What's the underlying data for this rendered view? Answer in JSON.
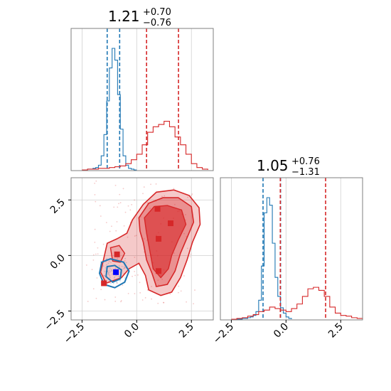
{
  "colors": {
    "blue": "#1f77b4",
    "red": "#d62728",
    "grid": "#d0d0d0",
    "axes": "#7f7f7f"
  },
  "titles": {
    "p1": {
      "value": "1.21",
      "plus": "+0.70",
      "minus": "−0.76"
    },
    "p2": {
      "value": "1.05",
      "plus": "+0.76",
      "minus": "−1.31"
    }
  },
  "chart_data": [
    {
      "type": "histogram",
      "panel": "top-left marginal (parameter 1)",
      "xlim": [
        -3.0,
        3.5
      ],
      "series": [
        {
          "color": "#1f77b4",
          "quantiles": [
            -1.35,
            -1.06,
            -0.78
          ],
          "bins": [
            -2.5,
            -2.375,
            -2.25,
            -2.125,
            -2.0,
            -1.875,
            -1.75,
            -1.625,
            -1.5,
            -1.375,
            -1.25,
            -1.125,
            -1.0,
            -0.875,
            -0.75,
            -0.625,
            -0.5,
            -0.375,
            -0.25,
            -0.125
          ],
          "counts": [
            0,
            0,
            1,
            1,
            2,
            3,
            6,
            18,
            45,
            88,
            130,
            155,
            140,
            96,
            52,
            18,
            6,
            2,
            1,
            0
          ]
        },
        {
          "color": "#d62728",
          "quantiles": [
            0.45,
            1.21,
            1.91
          ],
          "bins": [
            -2.5,
            -2.25,
            -2.0,
            -1.75,
            -1.5,
            -1.25,
            -1.0,
            -0.75,
            -0.5,
            -0.25,
            0.0,
            0.25,
            0.5,
            0.75,
            1.0,
            1.25,
            1.5,
            1.75,
            2.0,
            2.25,
            2.5,
            2.75,
            3.0
          ],
          "counts": [
            0,
            1,
            1,
            2,
            2,
            3,
            4,
            5,
            8,
            13,
            20,
            32,
            48,
            55,
            58,
            62,
            55,
            42,
            32,
            20,
            8,
            3,
            1
          ]
        }
      ]
    },
    {
      "type": "scatter",
      "panel": "bottom-left joint (parameter 1 vs parameter 2)",
      "xlim": [
        -3.0,
        3.5
      ],
      "ylim": [
        -2.9,
        3.5
      ],
      "xticks": [
        "−2.5",
        "0.0",
        "2.5"
      ],
      "yticks": [
        "2.5",
        "0.0",
        "−2.5"
      ],
      "contours": [
        {
          "color": "#d62728",
          "levels": 3,
          "note": "filled density contours"
        },
        {
          "color": "#1f77b4",
          "levels": 2,
          "note": "line density contours"
        }
      ],
      "markers": [
        {
          "color": "#d62728",
          "x": 0.95,
          "y": 2.1
        },
        {
          "color": "#d62728",
          "x": 1.55,
          "y": 1.45
        },
        {
          "color": "#d62728",
          "x": 1.0,
          "y": 0.75
        },
        {
          "color": "#d62728",
          "x": 1.0,
          "y": -0.7
        },
        {
          "color": "#d62728",
          "x": -0.9,
          "y": 0.05
        },
        {
          "color": "#d62728",
          "x": -1.5,
          "y": -1.25
        },
        {
          "color": "#0000ff",
          "x": -0.95,
          "y": -0.75
        }
      ]
    },
    {
      "type": "histogram",
      "panel": "bottom-right marginal (parameter 2)",
      "xlim": [
        -3.0,
        3.5
      ],
      "xticks": [
        "−2.5",
        "0.0",
        "2.5"
      ],
      "series": [
        {
          "color": "#1f77b4",
          "quantiles": [
            -1.05,
            -0.55,
            -0.25
          ],
          "bins": [
            -2.5,
            -2.375,
            -2.25,
            -2.125,
            -2.0,
            -1.875,
            -1.75,
            -1.625,
            -1.5,
            -1.375,
            -1.25,
            -1.125,
            -1.0,
            -0.875,
            -0.75,
            -0.625,
            -0.5,
            -0.375,
            -0.25,
            -0.125,
            0.0,
            0.125
          ],
          "counts": [
            0,
            0,
            0,
            0,
            1,
            1,
            2,
            3,
            5,
            10,
            25,
            70,
            140,
            160,
            150,
            100,
            55,
            30,
            15,
            8,
            3,
            1
          ]
        },
        {
          "color": "#d62728",
          "quantiles": [
            -0.26,
            1.05,
            1.81
          ],
          "bins": [
            -2.5,
            -2.25,
            -2.0,
            -1.75,
            -1.5,
            -1.25,
            -1.0,
            -0.75,
            -0.5,
            -0.25,
            0.0,
            0.25,
            0.5,
            0.75,
            1.0,
            1.25,
            1.5,
            1.75,
            2.0,
            2.25,
            2.5,
            2.75,
            3.0,
            3.25
          ],
          "counts": [
            0,
            1,
            2,
            4,
            6,
            10,
            12,
            16,
            14,
            12,
            10,
            14,
            20,
            30,
            40,
            42,
            38,
            30,
            16,
            8,
            5,
            4,
            2,
            1
          ]
        }
      ]
    }
  ]
}
